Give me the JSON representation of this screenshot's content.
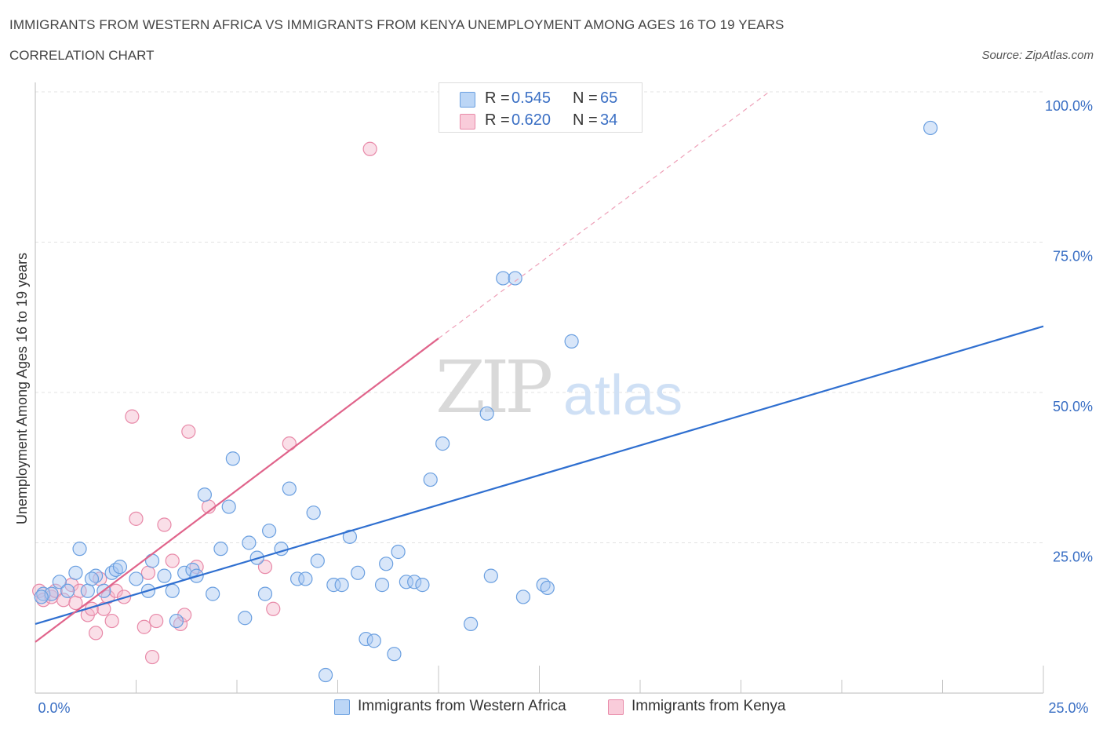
{
  "header": {
    "title": "IMMIGRANTS FROM WESTERN AFRICA VS IMMIGRANTS FROM KENYA UNEMPLOYMENT AMONG AGES 16 TO 19 YEARS",
    "subtitle": "CORRELATION CHART",
    "source": "Source: ZipAtlas.com"
  },
  "watermark": {
    "zip": "ZIP",
    "atlas": "atlas"
  },
  "stats_legend": {
    "rows": [
      {
        "r_label": "R =",
        "r_value": "0.545",
        "n_label": "N =",
        "n_value": "65",
        "color": "#a9c8f2"
      },
      {
        "r_label": "R =",
        "r_value": "0.620",
        "n_label": "N =",
        "n_value": "34",
        "color": "#f5b8cc"
      }
    ]
  },
  "bottom_legend": [
    {
      "label": "Immigrants from Western Africa",
      "color": "#a9c8f2"
    },
    {
      "label": "Immigrants from Kenya",
      "color": "#f5b8cc"
    }
  ],
  "chart_data": {
    "type": "scatter",
    "ylabel": "Unemployment Among Ages 16 to 19 years",
    "xlim": [
      0,
      25
    ],
    "ylim": [
      0,
      100
    ],
    "x_tick_labels": [
      {
        "value": 0,
        "label": "0.0%"
      },
      {
        "value": 25,
        "label": "25.0%"
      }
    ],
    "y_tick_labels": [
      {
        "value": 25,
        "label": "25.0%"
      },
      {
        "value": 50,
        "label": "50.0%"
      },
      {
        "value": 75,
        "label": "75.0%"
      },
      {
        "value": 100,
        "label": "100.0%"
      }
    ],
    "grid": true,
    "series": [
      {
        "name": "Immigrants from Western Africa",
        "color": "#6a9fe0",
        "fill": "#a9c8f2",
        "points": [
          [
            0.2,
            16.5
          ],
          [
            0.4,
            16.5
          ],
          [
            0.6,
            18.5
          ],
          [
            0.8,
            17.0
          ],
          [
            1.0,
            20.0
          ],
          [
            1.1,
            24.0
          ],
          [
            1.3,
            17.0
          ],
          [
            1.5,
            19.5
          ],
          [
            1.7,
            17.0
          ],
          [
            1.9,
            20.0
          ],
          [
            2.0,
            20.5
          ],
          [
            2.1,
            21.0
          ],
          [
            2.5,
            19.0
          ],
          [
            2.8,
            17.0
          ],
          [
            2.9,
            22.0
          ],
          [
            3.2,
            19.5
          ],
          [
            3.4,
            17.0
          ],
          [
            3.5,
            12.0
          ],
          [
            3.7,
            20.0
          ],
          [
            3.9,
            20.5
          ],
          [
            4.0,
            19.5
          ],
          [
            4.2,
            33.0
          ],
          [
            4.4,
            16.5
          ],
          [
            4.6,
            24.0
          ],
          [
            4.8,
            31.0
          ],
          [
            4.9,
            39.0
          ],
          [
            5.2,
            12.5
          ],
          [
            5.3,
            25.0
          ],
          [
            5.5,
            22.5
          ],
          [
            5.7,
            16.5
          ],
          [
            5.8,
            27.0
          ],
          [
            6.1,
            24.0
          ],
          [
            6.3,
            34.0
          ],
          [
            6.5,
            19.0
          ],
          [
            6.7,
            19.0
          ],
          [
            6.9,
            30.0
          ],
          [
            7.0,
            22.0
          ],
          [
            7.2,
            3.0
          ],
          [
            7.4,
            18.0
          ],
          [
            7.6,
            18.0
          ],
          [
            7.8,
            26.0
          ],
          [
            8.0,
            20.0
          ],
          [
            8.2,
            9.0
          ],
          [
            8.4,
            8.7
          ],
          [
            8.6,
            18.0
          ],
          [
            8.7,
            21.5
          ],
          [
            8.9,
            6.5
          ],
          [
            9.0,
            23.5
          ],
          [
            9.2,
            18.5
          ],
          [
            9.4,
            18.5
          ],
          [
            9.6,
            18.0
          ],
          [
            9.8,
            35.5
          ],
          [
            10.1,
            41.5
          ],
          [
            10.8,
            11.5
          ],
          [
            11.2,
            46.5
          ],
          [
            11.3,
            19.5
          ],
          [
            11.6,
            69.0
          ],
          [
            11.9,
            69.0
          ],
          [
            12.1,
            16.0
          ],
          [
            12.6,
            18.0
          ],
          [
            12.7,
            17.5
          ],
          [
            13.3,
            58.5
          ],
          [
            22.2,
            94.0
          ],
          [
            0.15,
            16.0
          ],
          [
            1.4,
            19.0
          ]
        ],
        "trend": {
          "x": [
            0,
            25
          ],
          "y": [
            11.5,
            61.0
          ]
        }
      },
      {
        "name": "Immigrants from Kenya",
        "color": "#e889a8",
        "fill": "#f5b8cc",
        "points": [
          [
            0.1,
            17.0
          ],
          [
            0.2,
            15.5
          ],
          [
            0.4,
            16.0
          ],
          [
            0.5,
            17.0
          ],
          [
            0.7,
            15.5
          ],
          [
            0.9,
            18.0
          ],
          [
            1.0,
            15.0
          ],
          [
            1.1,
            17.0
          ],
          [
            1.3,
            13.0
          ],
          [
            1.4,
            14.0
          ],
          [
            1.5,
            10.0
          ],
          [
            1.6,
            19.0
          ],
          [
            1.7,
            14.0
          ],
          [
            1.8,
            16.0
          ],
          [
            1.9,
            12.0
          ],
          [
            2.0,
            17.0
          ],
          [
            2.2,
            16.0
          ],
          [
            2.4,
            46.0
          ],
          [
            2.5,
            29.0
          ],
          [
            2.7,
            11.0
          ],
          [
            2.8,
            20.0
          ],
          [
            2.9,
            6.0
          ],
          [
            3.0,
            12.0
          ],
          [
            3.2,
            28.0
          ],
          [
            3.4,
            22.0
          ],
          [
            3.6,
            11.5
          ],
          [
            3.7,
            13.0
          ],
          [
            3.8,
            43.5
          ],
          [
            4.0,
            21.0
          ],
          [
            4.3,
            31.0
          ],
          [
            5.7,
            21.0
          ],
          [
            5.9,
            14.0
          ],
          [
            6.3,
            41.5
          ],
          [
            8.3,
            90.5
          ]
        ],
        "trend": {
          "x": [
            0,
            10.0
          ],
          "y": [
            8.5,
            59.0
          ]
        },
        "trend_extension": {
          "x": [
            10.0,
            18.2
          ],
          "y": [
            59.0,
            100.0
          ]
        }
      }
    ]
  }
}
